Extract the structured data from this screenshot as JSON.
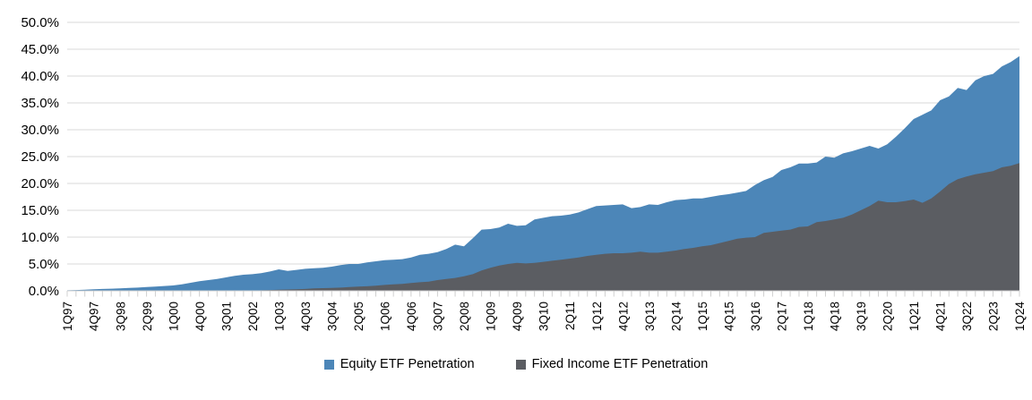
{
  "chart_data": {
    "type": "area",
    "title": "",
    "xlabel": "",
    "ylabel": "",
    "ylim": [
      0,
      50
    ],
    "ytick_step": 5,
    "ytick_labels": [
      "0.0%",
      "5.0%",
      "10.0%",
      "15.0%",
      "20.0%",
      "25.0%",
      "30.0%",
      "35.0%",
      "40.0%",
      "45.0%",
      "50.0%"
    ],
    "xtick_label_every": 3,
    "grid": "horizontal",
    "legend_position": "bottom",
    "overlay": true,
    "categories": [
      "1Q97",
      "2Q97",
      "3Q97",
      "4Q97",
      "1Q98",
      "2Q98",
      "3Q98",
      "4Q98",
      "1Q99",
      "2Q99",
      "3Q99",
      "4Q99",
      "1Q00",
      "2Q00",
      "3Q00",
      "4Q00",
      "1Q01",
      "2Q01",
      "3Q01",
      "4Q01",
      "1Q02",
      "2Q02",
      "3Q02",
      "4Q02",
      "1Q03",
      "2Q03",
      "3Q03",
      "4Q03",
      "1Q04",
      "2Q04",
      "3Q04",
      "4Q04",
      "1Q05",
      "2Q05",
      "3Q05",
      "4Q05",
      "1Q06",
      "2Q06",
      "3Q06",
      "4Q06",
      "1Q07",
      "2Q07",
      "3Q07",
      "4Q07",
      "1Q08",
      "2Q08",
      "3Q08",
      "4Q08",
      "1Q09",
      "2Q09",
      "3Q09",
      "4Q09",
      "1Q10",
      "2Q10",
      "3Q10",
      "4Q10",
      "1Q11",
      "2Q11",
      "3Q11",
      "4Q11",
      "1Q12",
      "2Q12",
      "3Q12",
      "4Q12",
      "1Q13",
      "2Q13",
      "3Q13",
      "4Q13",
      "1Q14",
      "2Q14",
      "3Q14",
      "4Q14",
      "1Q15",
      "2Q15",
      "3Q15",
      "4Q15",
      "1Q16",
      "2Q16",
      "3Q16",
      "4Q16",
      "1Q17",
      "2Q17",
      "3Q17",
      "4Q17",
      "1Q18",
      "2Q18",
      "3Q18",
      "4Q18",
      "1Q19",
      "2Q19",
      "3Q19",
      "4Q19",
      "1Q20",
      "2Q20",
      "3Q20",
      "4Q20",
      "1Q21",
      "2Q21",
      "3Q21",
      "4Q21",
      "1Q22",
      "2Q22",
      "3Q22",
      "4Q22",
      "1Q23",
      "2Q23",
      "3Q23",
      "4Q23",
      "1Q24"
    ],
    "series": [
      {
        "name": "Equity ETF Penetration",
        "color": "#4c86b8",
        "values": [
          0.1,
          0.15,
          0.2,
          0.3,
          0.35,
          0.4,
          0.45,
          0.55,
          0.6,
          0.7,
          0.8,
          0.9,
          1.0,
          1.2,
          1.5,
          1.8,
          2.0,
          2.2,
          2.5,
          2.8,
          3.0,
          3.1,
          3.3,
          3.6,
          4.0,
          3.7,
          3.9,
          4.1,
          4.2,
          4.3,
          4.5,
          4.8,
          5.0,
          5.0,
          5.3,
          5.5,
          5.7,
          5.8,
          5.9,
          6.2,
          6.7,
          6.9,
          7.2,
          7.8,
          8.6,
          8.3,
          9.8,
          11.4,
          11.5,
          11.8,
          12.5,
          12.1,
          12.2,
          13.3,
          13.6,
          13.9,
          14.0,
          14.2,
          14.6,
          15.2,
          15.8,
          15.9,
          16.0,
          16.1,
          15.4,
          15.6,
          16.1,
          16.0,
          16.5,
          16.9,
          17.0,
          17.2,
          17.2,
          17.5,
          17.8,
          18.0,
          18.3,
          18.6,
          19.7,
          20.6,
          21.2,
          22.5,
          23.0,
          23.7,
          23.7,
          23.9,
          25.0,
          24.8,
          25.6,
          26.0,
          26.5,
          27.0,
          26.5,
          27.3,
          28.7,
          30.3,
          32.0,
          32.8,
          33.6,
          35.5,
          36.2,
          37.8,
          37.4,
          39.2,
          40.0,
          40.4,
          41.8,
          42.6,
          43.7
        ]
      },
      {
        "name": "Fixed Income ETF Penetration",
        "color": "#5b5d62",
        "values": [
          0,
          0,
          0,
          0,
          0,
          0,
          0,
          0,
          0,
          0,
          0,
          0,
          0,
          0,
          0,
          0,
          0,
          0,
          0,
          0,
          0,
          0,
          0.1,
          0.15,
          0.2,
          0.25,
          0.3,
          0.35,
          0.45,
          0.5,
          0.55,
          0.6,
          0.7,
          0.8,
          0.85,
          0.95,
          1.1,
          1.2,
          1.3,
          1.45,
          1.6,
          1.7,
          2.0,
          2.2,
          2.4,
          2.7,
          3.1,
          3.8,
          4.3,
          4.7,
          5.0,
          5.2,
          5.1,
          5.2,
          5.4,
          5.6,
          5.8,
          6.0,
          6.2,
          6.5,
          6.7,
          6.9,
          7.0,
          7.0,
          7.1,
          7.3,
          7.1,
          7.1,
          7.3,
          7.5,
          7.8,
          8.0,
          8.3,
          8.5,
          8.9,
          9.3,
          9.7,
          9.9,
          10.0,
          10.8,
          11.0,
          11.2,
          11.4,
          11.9,
          12.0,
          12.8,
          13.0,
          13.3,
          13.6,
          14.2,
          15.0,
          15.8,
          16.8,
          16.5,
          16.5,
          16.7,
          17.0,
          16.4,
          17.2,
          18.5,
          19.9,
          20.8,
          21.3,
          21.7,
          22.0,
          22.3,
          23.0,
          23.3,
          23.8
        ]
      }
    ]
  },
  "colors": {
    "gridline": "#d9d9d9",
    "axis": "#d0d0d0",
    "text": "#000000",
    "background": "#ffffff"
  }
}
